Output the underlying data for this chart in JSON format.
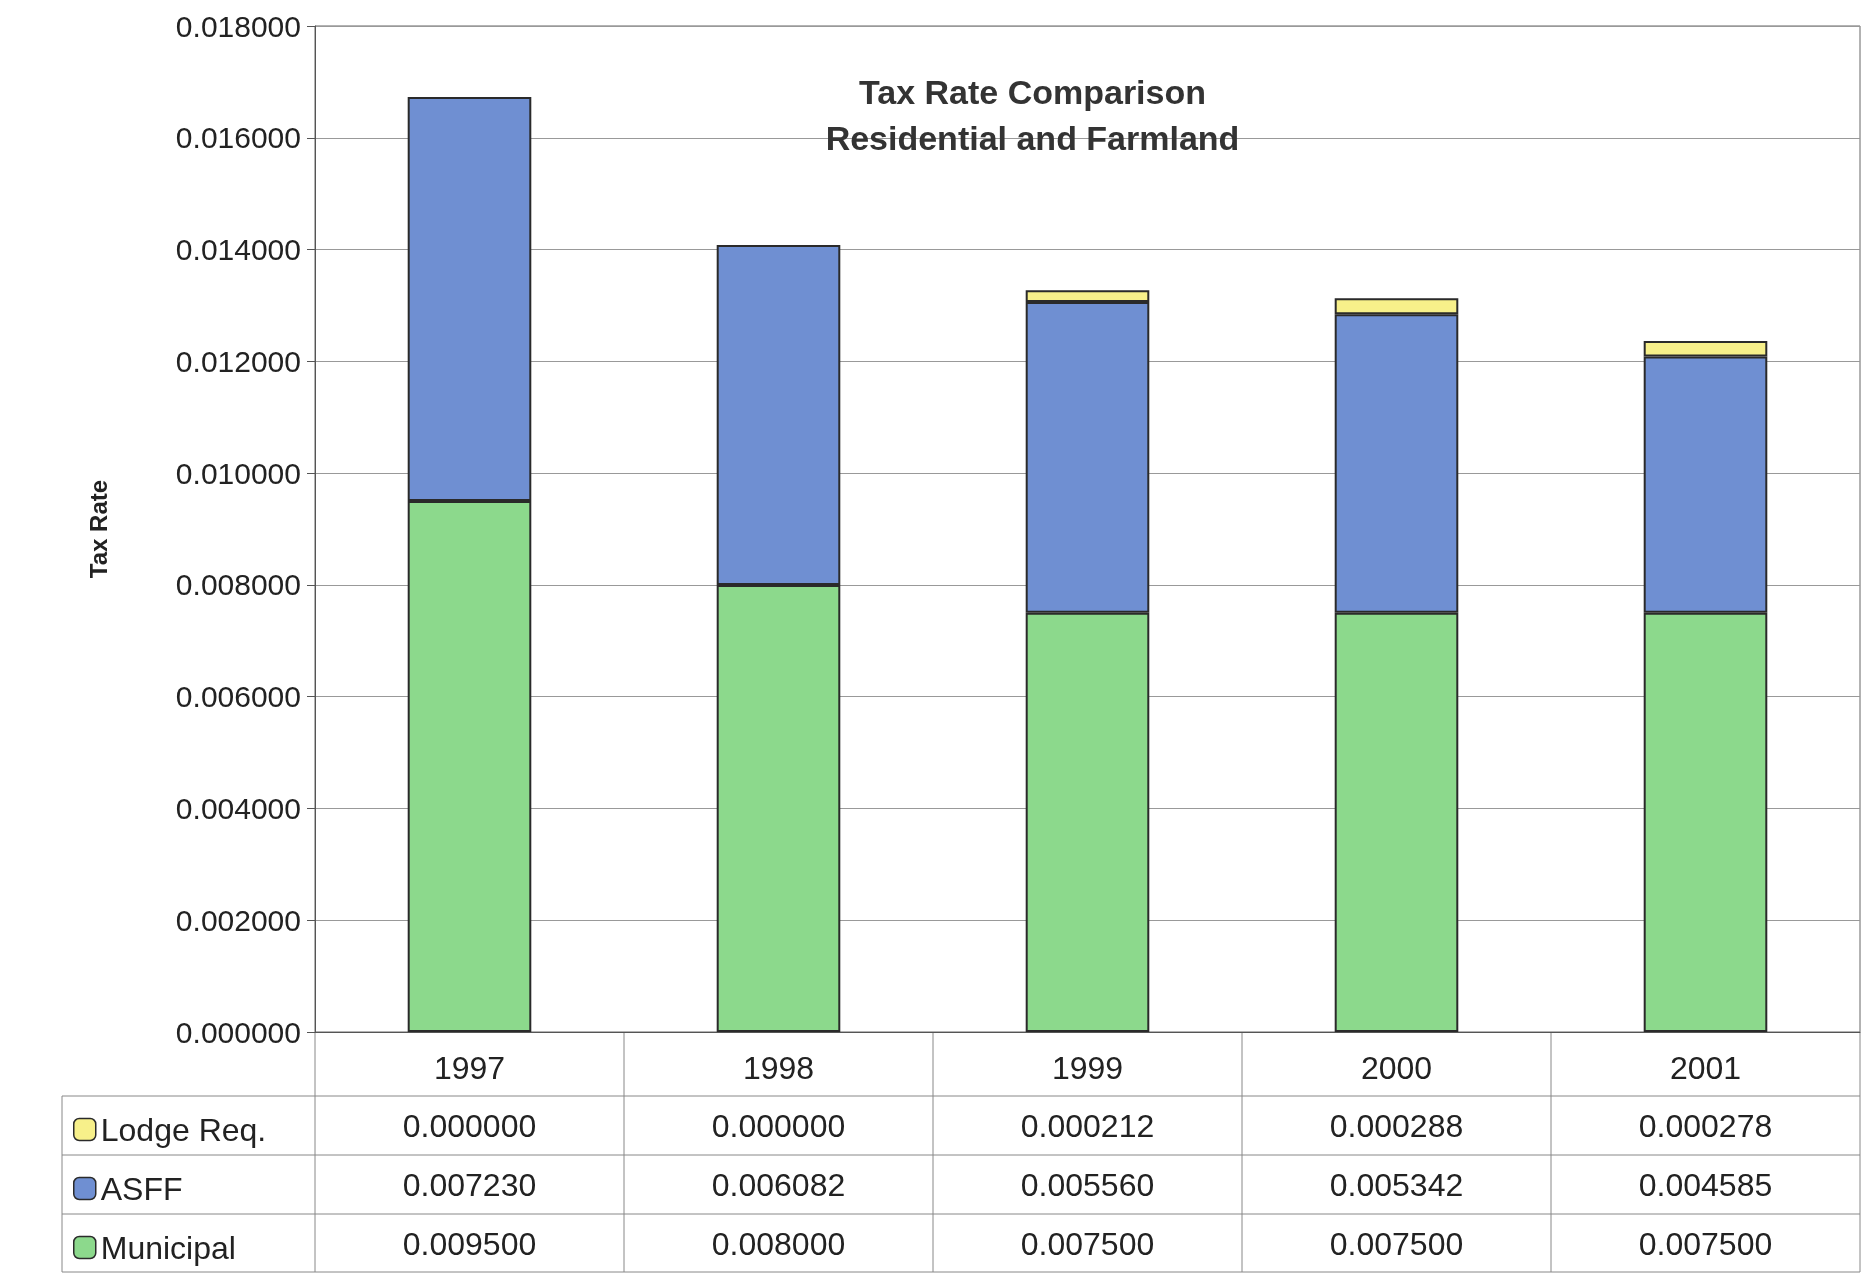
{
  "chart_data": {
    "type": "bar",
    "title": "Tax Rate Comparison",
    "subtitle": "Residential and Farmland",
    "ylabel": "Tax Rate",
    "categories": [
      "1997",
      "1998",
      "1999",
      "2000",
      "2001"
    ],
    "stacked": true,
    "series": [
      {
        "name": "Municipal",
        "color": "#8cd98c",
        "values": [
          0.0095,
          0.008,
          0.0075,
          0.0075,
          0.0075
        ],
        "value_labels": [
          "0.009500",
          "0.008000",
          "0.007500",
          "0.007500",
          "0.007500"
        ]
      },
      {
        "name": "ASFF",
        "color": "#6f8fd2",
        "values": [
          0.00723,
          0.006082,
          0.00556,
          0.005342,
          0.004585
        ],
        "value_labels": [
          "0.007230",
          "0.006082",
          "0.005560",
          "0.005342",
          "0.004585"
        ]
      },
      {
        "name": "Lodge Req.",
        "color": "#f7f08a",
        "values": [
          0,
          0,
          0.000212,
          0.000288,
          0.000278
        ],
        "value_labels": [
          "0.000000",
          "0.000000",
          "0.000212",
          "0.000288",
          "0.000278"
        ]
      }
    ],
    "ylim": [
      0,
      0.018
    ],
    "yticks": [
      {
        "value": 0,
        "label": "0.000000"
      },
      {
        "value": 0.002,
        "label": "0.002000"
      },
      {
        "value": 0.004,
        "label": "0.004000"
      },
      {
        "value": 0.006,
        "label": "0.006000"
      },
      {
        "value": 0.008,
        "label": "0.008000"
      },
      {
        "value": 0.01,
        "label": "0.010000"
      },
      {
        "value": 0.012,
        "label": "0.012000"
      },
      {
        "value": 0.014,
        "label": "0.014000"
      },
      {
        "value": 0.016,
        "label": "0.016000"
      },
      {
        "value": 0.018,
        "label": "0.018000"
      }
    ],
    "grid": "y",
    "legend": "bottom left"
  }
}
